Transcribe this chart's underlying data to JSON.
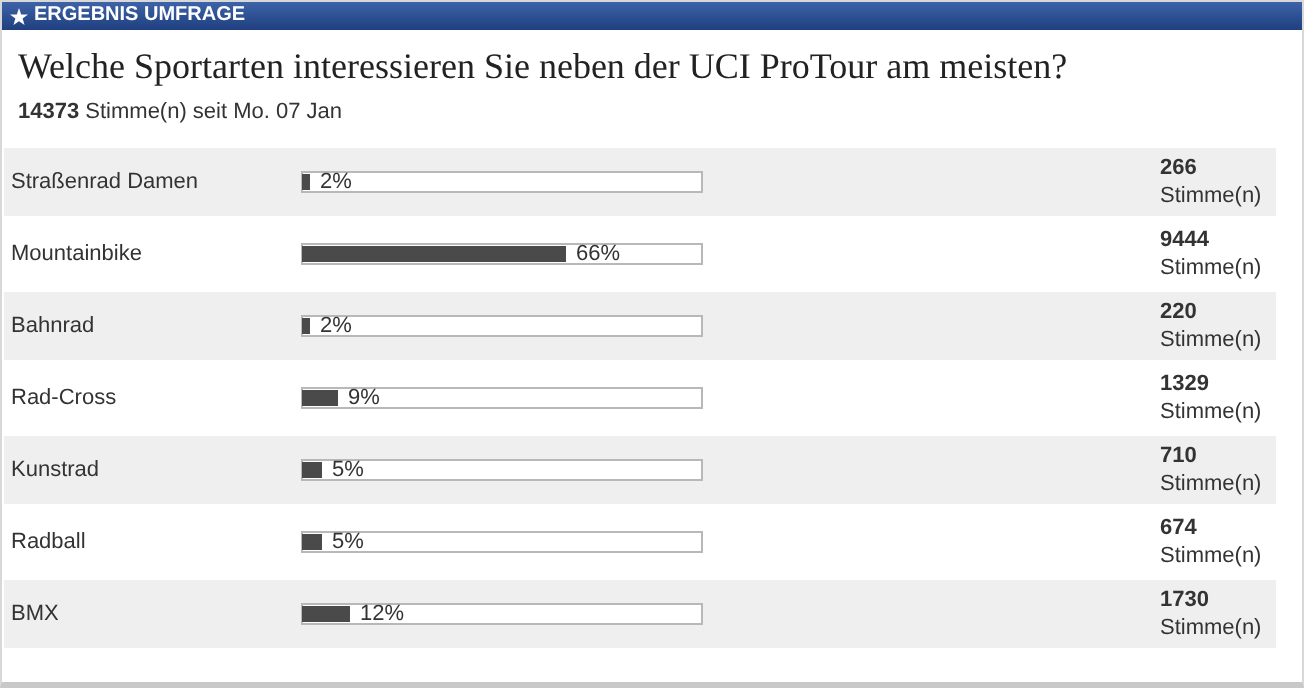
{
  "chart_data": {
    "type": "bar",
    "orientation": "horizontal",
    "title": "Welche Sportarten interessieren Sie neben der UCI ProTour am meisten?",
    "subtitle": "14373 Stimme(n) seit Mo. 07 Jan",
    "categories": [
      "Straßenrad Damen",
      "Mountainbike",
      "Bahnrad",
      "Rad-Cross",
      "Kunstrad",
      "Radball",
      "BMX"
    ],
    "values": [
      2,
      66,
      2,
      9,
      5,
      5,
      12
    ],
    "value_labels": [
      "2%",
      "66%",
      "2%",
      "9%",
      "5%",
      "5%",
      "12%"
    ],
    "color": "#4a4a4a",
    "xlim": [
      0,
      100
    ],
    "tick_labels": "y",
    "annotations": [
      "ERGEBNIS UMFRAGE",
      "266",
      "Stimme(n)",
      "9444",
      "Stimme(n)",
      "220",
      "Stimme(n)",
      "1329",
      "Stimme(n)",
      "710",
      "Stimme(n)",
      "674",
      "Stimme(n)",
      "1730",
      "Stimme(n)"
    ]
  }
}
